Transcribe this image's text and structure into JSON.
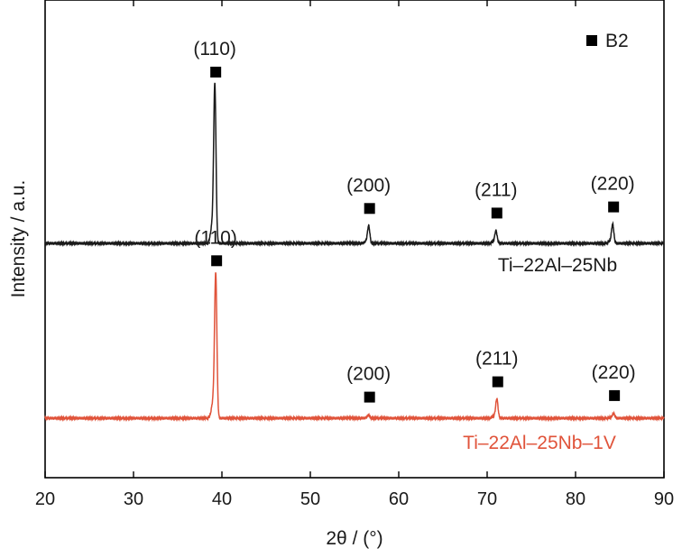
{
  "chart_data": {
    "type": "line",
    "xlabel": "2θ / (°)",
    "ylabel": "Intensity / a.u.",
    "xlim": [
      20,
      90
    ],
    "x_ticks": [
      20,
      30,
      40,
      50,
      60,
      70,
      80,
      90
    ],
    "y_ticks_shown": false,
    "grid": false,
    "legend": {
      "placement": "top-right",
      "entries": [
        {
          "label": "B2",
          "marker": "filled-square",
          "color": "#000000"
        }
      ]
    },
    "series": [
      {
        "name": "Ti–22Al–25Nb",
        "color": "#1a1a1a",
        "label_color": "#1a1a1a",
        "baseline": 1.0,
        "peaks": [
          {
            "x": 39.2,
            "height": 1.0,
            "hkl": "(110)"
          },
          {
            "x": 56.6,
            "height": 0.11,
            "hkl": "(200)"
          },
          {
            "x": 71.0,
            "height": 0.08,
            "hkl": "(211)"
          },
          {
            "x": 84.2,
            "height": 0.12,
            "hkl": "(220)"
          }
        ]
      },
      {
        "name": "Ti–22Al–25Nb–1V",
        "color": "#e0533a",
        "label_color": "#e0533a",
        "baseline": 0.0,
        "peaks": [
          {
            "x": 39.3,
            "height": 0.91,
            "hkl": "(110)"
          },
          {
            "x": 56.6,
            "height": 0.02,
            "hkl": "(200)"
          },
          {
            "x": 71.1,
            "height": 0.12,
            "hkl": "(211)"
          },
          {
            "x": 84.3,
            "height": 0.03,
            "hkl": "(220)"
          }
        ]
      }
    ]
  }
}
